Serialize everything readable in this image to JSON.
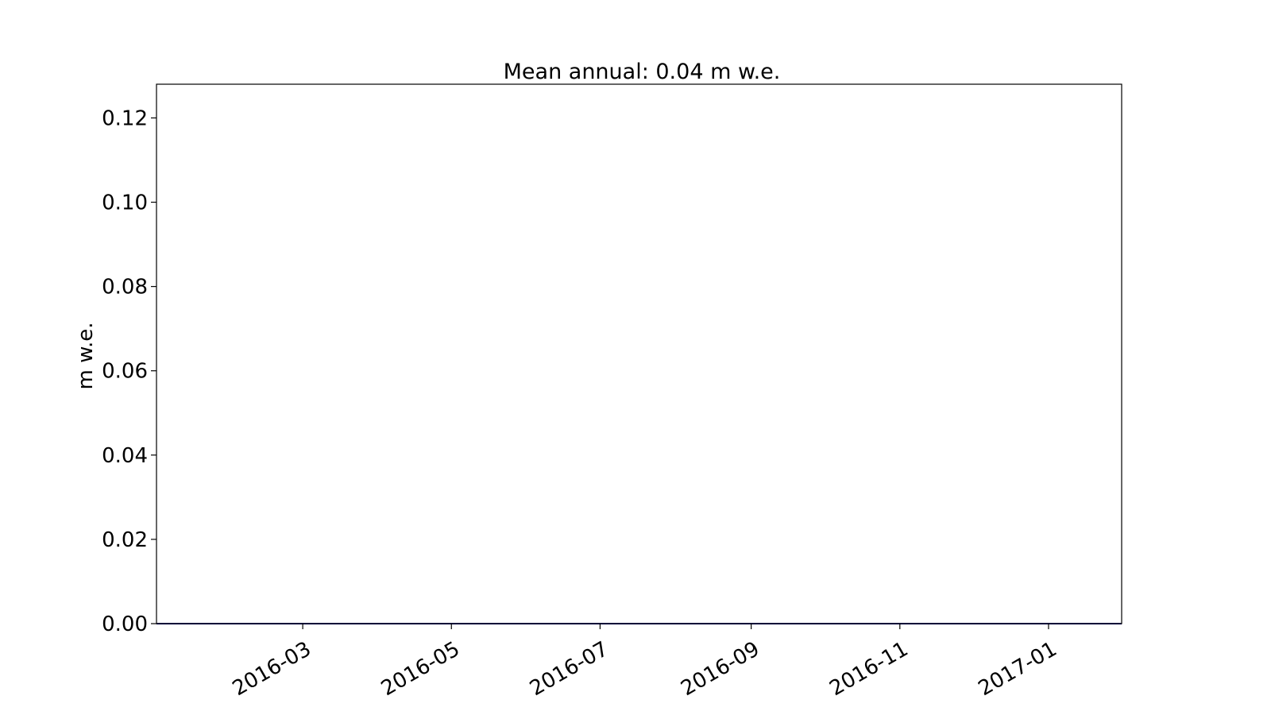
{
  "chart_data": {
    "type": "line",
    "title": "Mean annual: 0.04 m w.e.",
    "xlabel": "",
    "ylabel": "m w.e.",
    "xlim": [
      "2016-01-01",
      "2017-01-31"
    ],
    "ylim": [
      0,
      0.128
    ],
    "xticks": [
      {
        "value": "2016-03-01",
        "label": "2016-03"
      },
      {
        "value": "2016-05-01",
        "label": "2016-05"
      },
      {
        "value": "2016-07-01",
        "label": "2016-07"
      },
      {
        "value": "2016-09-01",
        "label": "2016-09"
      },
      {
        "value": "2016-11-01",
        "label": "2016-11"
      },
      {
        "value": "2017-01-01",
        "label": "2017-01"
      }
    ],
    "yticks": [
      {
        "value": 0.0,
        "label": "0.00"
      },
      {
        "value": 0.02,
        "label": "0.02"
      },
      {
        "value": 0.04,
        "label": "0.04"
      },
      {
        "value": 0.06,
        "label": "0.06"
      },
      {
        "value": 0.08,
        "label": "0.08"
      },
      {
        "value": 0.1,
        "label": "0.10"
      },
      {
        "value": 0.12,
        "label": "0.12"
      }
    ],
    "grid": false,
    "series": [
      {
        "color": "#00008b",
        "x": [
          "2016-01-01",
          "2017-01-31"
        ],
        "y": [
          0,
          0
        ]
      }
    ]
  }
}
